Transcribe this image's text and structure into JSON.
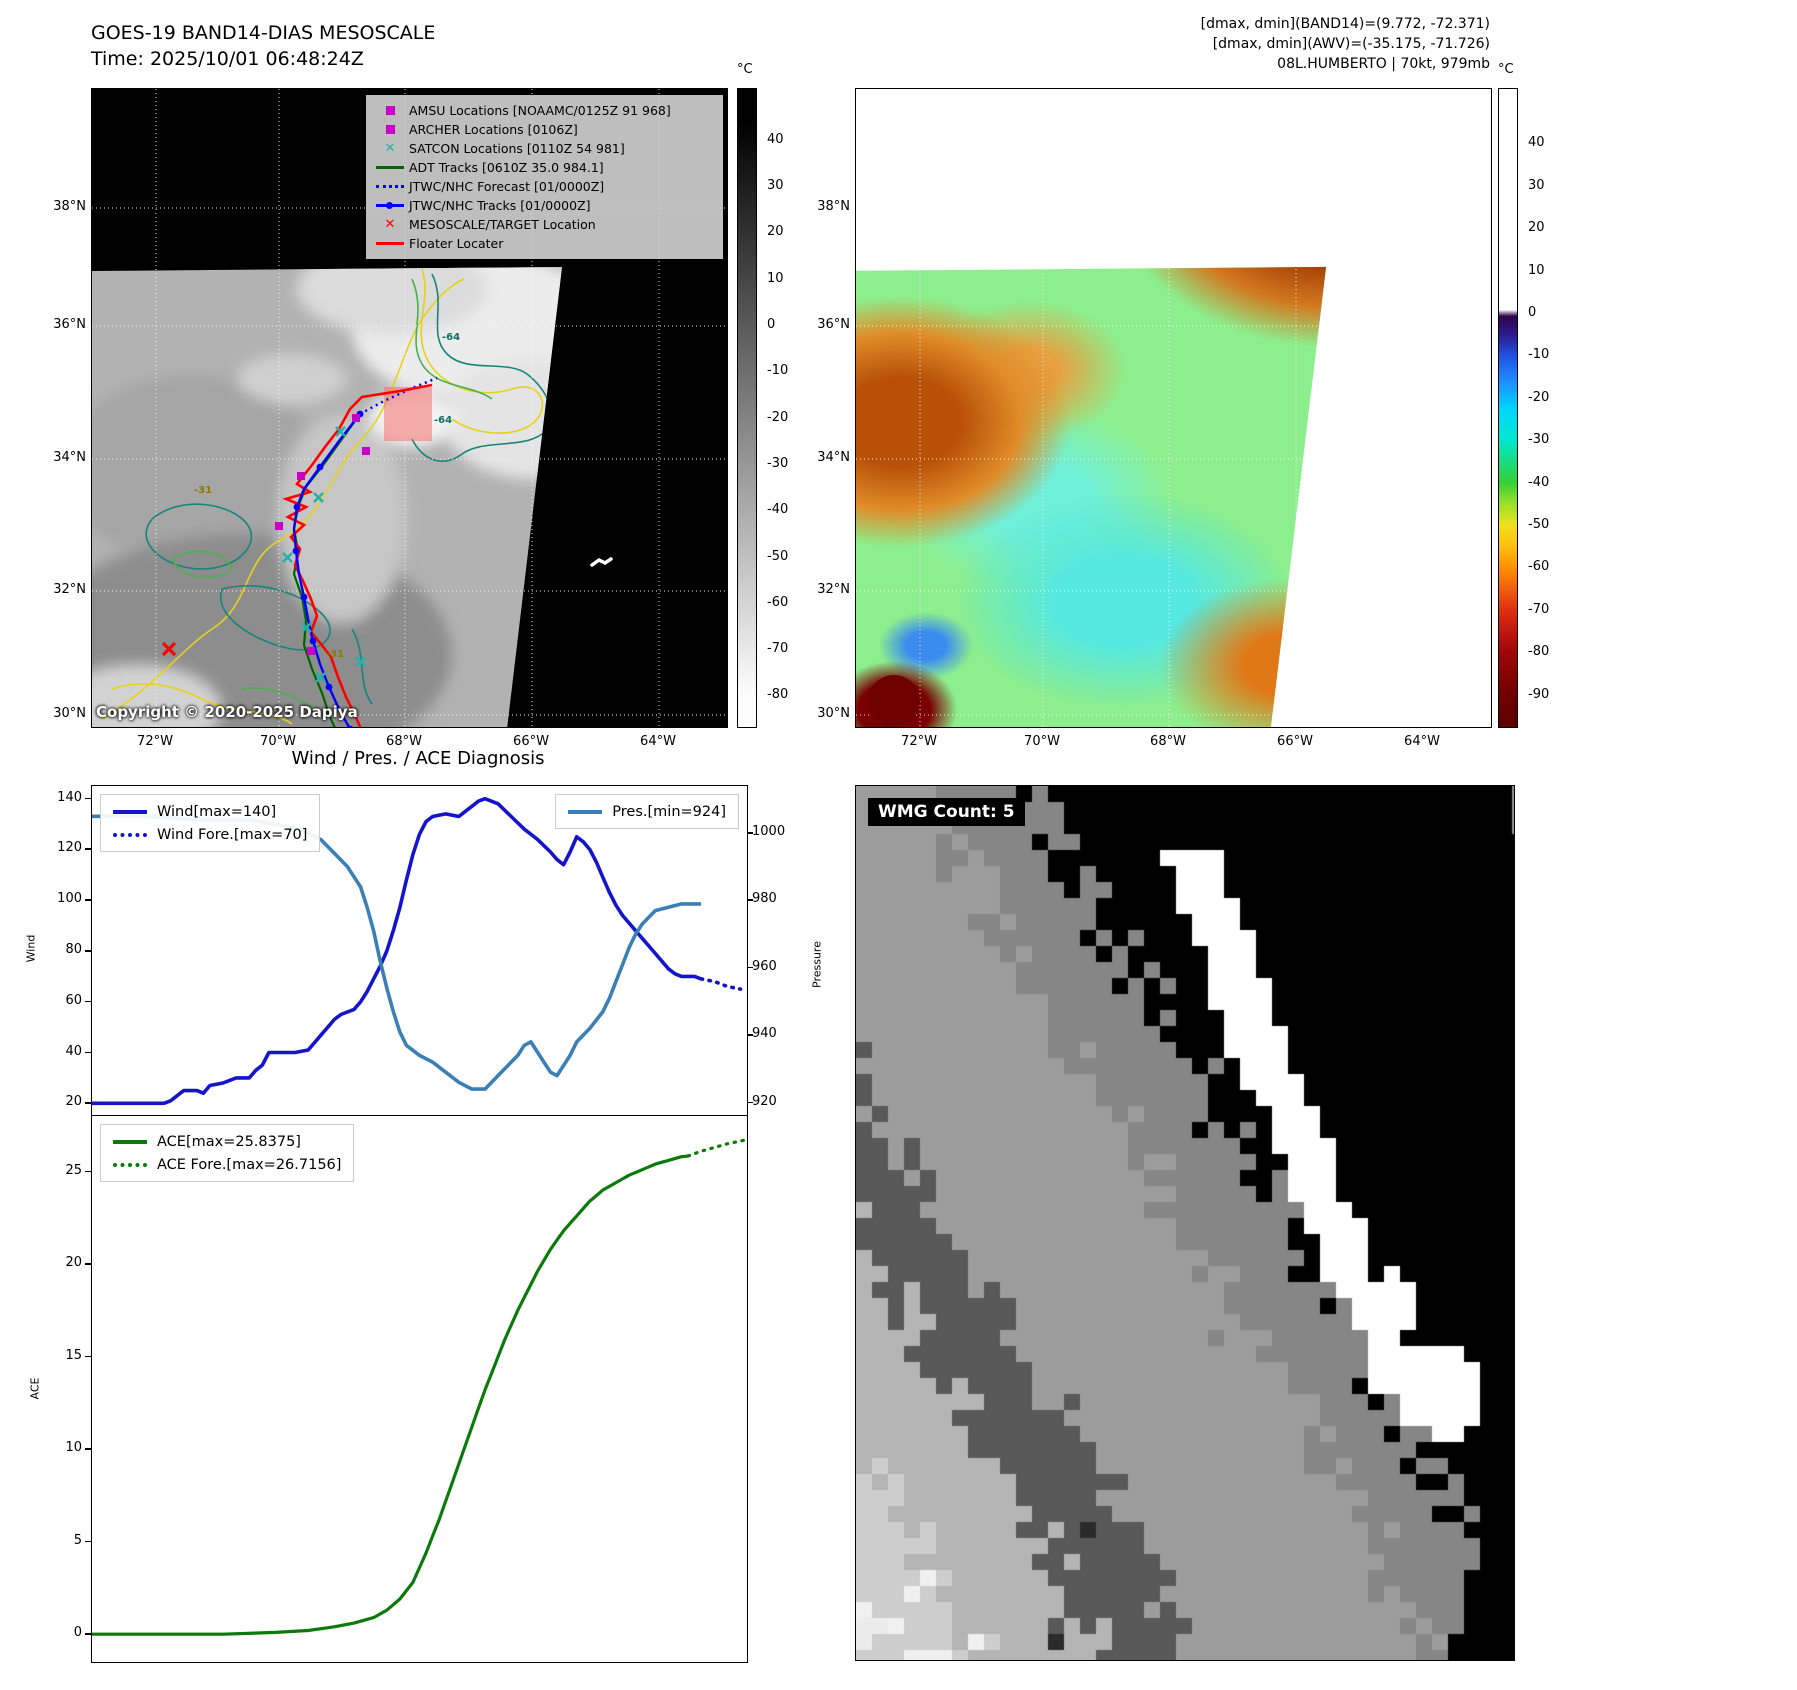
{
  "panel_band14": {
    "title": "GOES-19 BAND14-DIAS MESOSCALE",
    "time": "Time: 2025/10/01 06:48:24Z",
    "copyright": "Copyright © 2020-2025 Dapiya",
    "colorbar": {
      "unit": "°C",
      "ticks": [
        40,
        30,
        20,
        10,
        0,
        -10,
        -20,
        -30,
        -40,
        -50,
        -60,
        -70,
        -80
      ]
    },
    "lat_ticks": [
      "38°N",
      "36°N",
      "34°N",
      "32°N",
      "30°N"
    ],
    "lon_ticks": [
      "72°W",
      "70°W",
      "68°W",
      "66°W",
      "64°W"
    ],
    "legend": [
      {
        "marker": "square",
        "color": "#c800c8",
        "label": "AMSU Locations [NOAAMC/0125Z 91 968]"
      },
      {
        "marker": "square",
        "color": "#c800c8",
        "label": "ARCHER Locations [0106Z]"
      },
      {
        "marker": "x",
        "color": "#20b2aa",
        "label": "SATCON Locations [0110Z 54 981]"
      },
      {
        "marker": "line",
        "color": "#006400",
        "label": "ADT Tracks [0610Z 35.0 984.1]"
      },
      {
        "marker": "dotted-line",
        "color": "#0000ff",
        "label": "JTWC/NHC Forecast [01/0000Z]"
      },
      {
        "marker": "line-dot",
        "color": "#0000ff",
        "label": "JTWC/NHC Tracks [01/0000Z]"
      },
      {
        "marker": "x",
        "color": "#ff0000",
        "label": "MESOSCALE/TARGET Location"
      },
      {
        "marker": "line",
        "color": "#ff0000",
        "label": "Floater Locater"
      }
    ],
    "contour_labels": {
      "teal": "-64",
      "yellow": "-31"
    }
  },
  "panel_awv": {
    "header_lines": [
      "[dmax, dmin](BAND14)=(9.772, -72.371)",
      "[dmax, dmin](AWV)=(-35.175, -71.726)",
      "08L.HUMBERTO | 70kt, 979mb"
    ],
    "colorbar": {
      "unit": "°C",
      "ticks": [
        40,
        30,
        20,
        10,
        0,
        -10,
        -20,
        -30,
        -40,
        -50,
        -60,
        -70,
        -80,
        -90
      ]
    },
    "lat_ticks": [
      "38°N",
      "36°N",
      "34°N",
      "32°N",
      "30°N"
    ],
    "lon_ticks": [
      "72°W",
      "70°W",
      "68°W",
      "66°W",
      "64°W"
    ]
  },
  "wmg": {
    "label": "WMG Count: 5"
  },
  "chart_data": [
    {
      "type": "line",
      "title": "Wind / Pres. / ACE Diagnosis",
      "ylabel": "Wind",
      "ylabel_right": "Pressure",
      "ylim": [
        15,
        145
      ],
      "ylim_right": [
        916,
        1014
      ],
      "yticks": [
        20,
        40,
        60,
        80,
        100,
        120,
        140
      ],
      "yticks_right": [
        920,
        940,
        960,
        980,
        1000
      ],
      "xlim": [
        0,
        100
      ],
      "grid": false,
      "series": [
        {
          "name": "Wind[max=140]",
          "axis": "left",
          "style": "solid",
          "color": "#1414cd",
          "width": 3.6,
          "points": [
            [
              0,
              20
            ],
            [
              11,
              20
            ],
            [
              12,
              21
            ],
            [
              14,
              25
            ],
            [
              16,
              25
            ],
            [
              17,
              24
            ],
            [
              18,
              27
            ],
            [
              20,
              28
            ],
            [
              22,
              30
            ],
            [
              24,
              30
            ],
            [
              25,
              33
            ],
            [
              26,
              35
            ],
            [
              27,
              40
            ],
            [
              31,
              40
            ],
            [
              33,
              41
            ],
            [
              34,
              44
            ],
            [
              35,
              47
            ],
            [
              36,
              50
            ],
            [
              37,
              53
            ],
            [
              38,
              55
            ],
            [
              40,
              57
            ],
            [
              41,
              60
            ],
            [
              42,
              64
            ],
            [
              43,
              69
            ],
            [
              44,
              74
            ],
            [
              45,
              80
            ],
            [
              46,
              88
            ],
            [
              47,
              97
            ],
            [
              48,
              108
            ],
            [
              49,
              118
            ],
            [
              50,
              126
            ],
            [
              51,
              131
            ],
            [
              52,
              133
            ],
            [
              54,
              134
            ],
            [
              56,
              133
            ],
            [
              57,
              135
            ],
            [
              58,
              137
            ],
            [
              59,
              139
            ],
            [
              60,
              140
            ],
            [
              62,
              138
            ],
            [
              64,
              133
            ],
            [
              66,
              128
            ],
            [
              68,
              124
            ],
            [
              70,
              119
            ],
            [
              71,
              116
            ],
            [
              72,
              114
            ],
            [
              73,
              119
            ],
            [
              74,
              125
            ],
            [
              75,
              123
            ],
            [
              76,
              120
            ],
            [
              77,
              115
            ],
            [
              78,
              109
            ],
            [
              79,
              103
            ],
            [
              80,
              98
            ],
            [
              81,
              94
            ],
            [
              82,
              91
            ],
            [
              83,
              88
            ],
            [
              84,
              85
            ],
            [
              85,
              82
            ],
            [
              86,
              79
            ],
            [
              87,
              76
            ],
            [
              88,
              73
            ],
            [
              89,
              71
            ],
            [
              90,
              70
            ],
            [
              92,
              70
            ],
            [
              93,
              69
            ]
          ]
        },
        {
          "name": "Wind Fore.[max=70]",
          "axis": "left",
          "style": "dotted",
          "color": "#1414cd",
          "width": 3.6,
          "points": [
            [
              93,
              69
            ],
            [
              95,
              68
            ],
            [
              97,
              66
            ],
            [
              99,
              65
            ]
          ]
        },
        {
          "name": "Pres.[min=924]",
          "axis": "right",
          "style": "solid",
          "color": "#3a7fb5",
          "width": 3.6,
          "points": [
            [
              0,
              1005
            ],
            [
              8,
              1005
            ],
            [
              16,
              1004
            ],
            [
              24,
              1004
            ],
            [
              30,
              1002
            ],
            [
              33,
              1000
            ],
            [
              35,
              998
            ],
            [
              37,
              994
            ],
            [
              39,
              990
            ],
            [
              41,
              984
            ],
            [
              42,
              978
            ],
            [
              43,
              971
            ],
            [
              44,
              962
            ],
            [
              45,
              954
            ],
            [
              46,
              947
            ],
            [
              47,
              941
            ],
            [
              48,
              937
            ],
            [
              50,
              934
            ],
            [
              52,
              932
            ],
            [
              54,
              929
            ],
            [
              56,
              926
            ],
            [
              58,
              924
            ],
            [
              60,
              924
            ],
            [
              61,
              926
            ],
            [
              63,
              930
            ],
            [
              65,
              934
            ],
            [
              66,
              937
            ],
            [
              67,
              938
            ],
            [
              68,
              935
            ],
            [
              69,
              932
            ],
            [
              70,
              929
            ],
            [
              71,
              928
            ],
            [
              72,
              931
            ],
            [
              73,
              934
            ],
            [
              74,
              938
            ],
            [
              76,
              942
            ],
            [
              78,
              947
            ],
            [
              79,
              951
            ],
            [
              80,
              956
            ],
            [
              81,
              961
            ],
            [
              82,
              966
            ],
            [
              83,
              970
            ],
            [
              84,
              973
            ],
            [
              85,
              975
            ],
            [
              86,
              977
            ],
            [
              88,
              978
            ],
            [
              90,
              979
            ],
            [
              93,
              979
            ]
          ]
        }
      ]
    },
    {
      "type": "line",
      "ylabel": "ACE",
      "ylim": [
        -1.5,
        28
      ],
      "yticks": [
        0,
        5,
        10,
        15,
        20,
        25
      ],
      "xlim": [
        0,
        100
      ],
      "grid": false,
      "series": [
        {
          "name": "ACE[max=25.8375]",
          "axis": "left",
          "style": "solid",
          "color": "#0b7a0b",
          "width": 3.2,
          "points": [
            [
              0,
              0
            ],
            [
              20,
              0
            ],
            [
              28,
              0.1
            ],
            [
              33,
              0.2
            ],
            [
              37,
              0.4
            ],
            [
              40,
              0.6
            ],
            [
              43,
              0.9
            ],
            [
              45,
              1.3
            ],
            [
              47,
              1.9
            ],
            [
              49,
              2.8
            ],
            [
              50,
              3.6
            ],
            [
              51,
              4.4
            ],
            [
              52,
              5.3
            ],
            [
              53,
              6.2
            ],
            [
              54,
              7.2
            ],
            [
              55,
              8.2
            ],
            [
              56,
              9.2
            ],
            [
              57,
              10.2
            ],
            [
              58,
              11.2
            ],
            [
              59,
              12.2
            ],
            [
              60,
              13.2
            ],
            [
              61,
              14.1
            ],
            [
              62,
              15
            ],
            [
              63,
              15.9
            ],
            [
              64,
              16.7
            ],
            [
              65,
              17.5
            ],
            [
              66,
              18.2
            ],
            [
              67,
              18.9
            ],
            [
              68,
              19.6
            ],
            [
              69,
              20.2
            ],
            [
              70,
              20.8
            ],
            [
              71,
              21.3
            ],
            [
              72,
              21.8
            ],
            [
              73,
              22.2
            ],
            [
              74,
              22.6
            ],
            [
              75,
              23
            ],
            [
              76,
              23.4
            ],
            [
              77,
              23.7
            ],
            [
              78,
              24
            ],
            [
              79,
              24.2
            ],
            [
              80,
              24.4
            ],
            [
              81,
              24.6
            ],
            [
              82,
              24.8
            ],
            [
              84,
              25.1
            ],
            [
              86,
              25.4
            ],
            [
              88,
              25.6
            ],
            [
              90,
              25.8
            ],
            [
              91,
              25.84
            ]
          ]
        },
        {
          "name": "ACE Fore.[max=26.7156]",
          "axis": "left",
          "style": "dotted",
          "color": "#0b7a0b",
          "width": 3.2,
          "points": [
            [
              91,
              25.84
            ],
            [
              93,
              26.1
            ],
            [
              95,
              26.3
            ],
            [
              97,
              26.5
            ],
            [
              99,
              26.65
            ],
            [
              100,
              26.72
            ]
          ]
        }
      ]
    }
  ]
}
